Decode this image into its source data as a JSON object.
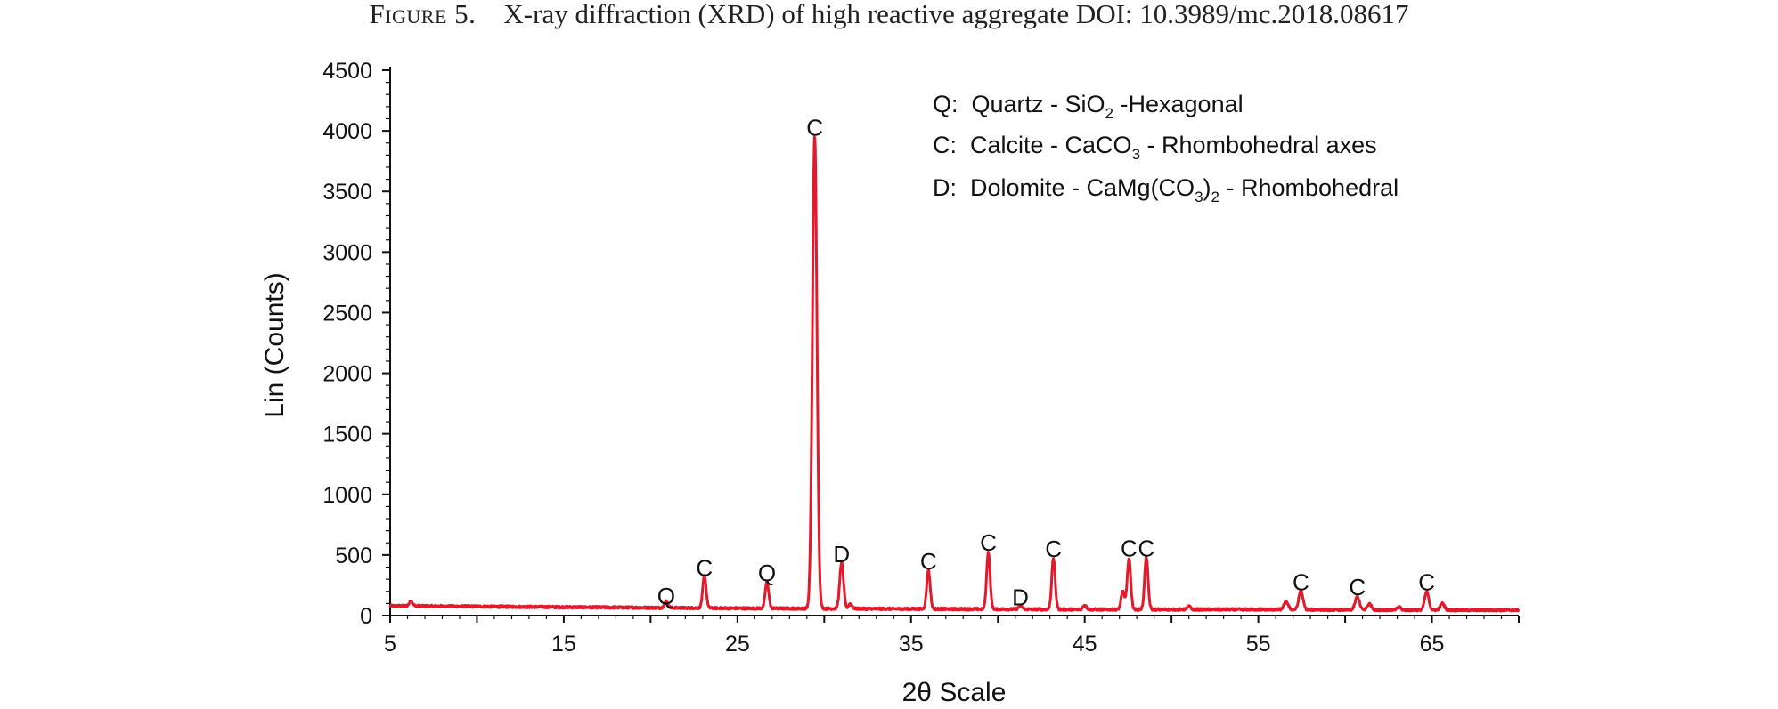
{
  "caption": {
    "figure_label": "Figure 5.",
    "text": "X-ray diffraction (XRD) of high reactive aggregate DOI: 10.3989/mc.2018.08617"
  },
  "colors": {
    "series": "#e31a2c",
    "axis": "#111111"
  },
  "chart_data": {
    "type": "line",
    "title": "",
    "xlabel": "2θ Scale",
    "ylabel": "Lin (Counts)",
    "xlim": [
      5,
      70
    ],
    "ylim": [
      0,
      4500
    ],
    "x_ticks": [
      5,
      15,
      25,
      35,
      45,
      55,
      65
    ],
    "y_ticks": [
      0,
      500,
      1000,
      1500,
      2000,
      2500,
      3000,
      3500,
      4000,
      4500
    ],
    "grid": false,
    "legend_position": "top-right",
    "legend": [
      {
        "key": "Q:",
        "parts": [
          [
            "Quartz - SiO",
            ""
          ],
          [
            "2",
            "sub"
          ],
          [
            " -Hexagonal",
            ""
          ]
        ]
      },
      {
        "key": "C:",
        "parts": [
          [
            "Calcite - CaCO",
            ""
          ],
          [
            "3",
            "sub"
          ],
          [
            " - Rhombohedral axes",
            ""
          ]
        ]
      },
      {
        "key": "D:",
        "parts": [
          [
            "Dolomite - CaMg(CO",
            ""
          ],
          [
            "3",
            "sub"
          ],
          [
            ")",
            ""
          ],
          [
            "2",
            "sub"
          ],
          [
            " - Rhombohedral",
            ""
          ]
        ]
      }
    ],
    "series": [
      {
        "color": "#e31a2c",
        "baseline": [
          [
            5,
            80
          ],
          [
            15,
            70
          ],
          [
            25,
            60
          ],
          [
            35,
            55
          ],
          [
            45,
            50
          ],
          [
            55,
            50
          ],
          [
            65,
            45
          ],
          [
            70,
            45
          ]
        ],
        "peaks": [
          {
            "x": 6.2,
            "y": 40,
            "w": 0.1
          },
          {
            "x": 20.9,
            "y": 55,
            "w": 0.1
          },
          {
            "x": 23.1,
            "y": 265,
            "w": 0.1
          },
          {
            "x": 26.7,
            "y": 220,
            "w": 0.1
          },
          {
            "x": 29.45,
            "y": 3900,
            "w": 0.13
          },
          {
            "x": 31.0,
            "y": 380,
            "w": 0.11
          },
          {
            "x": 31.5,
            "y": 40,
            "w": 0.1
          },
          {
            "x": 36.0,
            "y": 320,
            "w": 0.1
          },
          {
            "x": 39.45,
            "y": 470,
            "w": 0.1
          },
          {
            "x": 41.3,
            "y": 30,
            "w": 0.1
          },
          {
            "x": 43.2,
            "y": 420,
            "w": 0.1
          },
          {
            "x": 45.0,
            "y": 35,
            "w": 0.1
          },
          {
            "x": 47.2,
            "y": 150,
            "w": 0.1
          },
          {
            "x": 47.55,
            "y": 420,
            "w": 0.1
          },
          {
            "x": 48.55,
            "y": 430,
            "w": 0.1
          },
          {
            "x": 51.0,
            "y": 25,
            "w": 0.1
          },
          {
            "x": 56.6,
            "y": 65,
            "w": 0.12
          },
          {
            "x": 57.45,
            "y": 155,
            "w": 0.12
          },
          {
            "x": 60.7,
            "y": 110,
            "w": 0.12
          },
          {
            "x": 61.4,
            "y": 50,
            "w": 0.12
          },
          {
            "x": 63.1,
            "y": 25,
            "w": 0.1
          },
          {
            "x": 64.7,
            "y": 150,
            "w": 0.12
          },
          {
            "x": 65.6,
            "y": 55,
            "w": 0.12
          }
        ]
      }
    ],
    "annotations": [
      {
        "label": "Q",
        "x": 20.9,
        "y": 95
      },
      {
        "label": "C",
        "x": 23.1,
        "y": 325
      },
      {
        "label": "Q",
        "x": 26.7,
        "y": 285
      },
      {
        "label": "C",
        "x": 29.45,
        "y": 3960
      },
      {
        "label": "D",
        "x": 31.0,
        "y": 440
      },
      {
        "label": "C",
        "x": 36.0,
        "y": 380
      },
      {
        "label": "C",
        "x": 39.45,
        "y": 535
      },
      {
        "label": "D",
        "x": 41.3,
        "y": 85
      },
      {
        "label": "C",
        "x": 43.2,
        "y": 485
      },
      {
        "label": "C",
        "x": 47.55,
        "y": 490
      },
      {
        "label": "C",
        "x": 48.55,
        "y": 490
      },
      {
        "label": "C",
        "x": 57.45,
        "y": 210
      },
      {
        "label": "C",
        "x": 60.7,
        "y": 170
      },
      {
        "label": "C",
        "x": 64.7,
        "y": 210
      }
    ]
  }
}
